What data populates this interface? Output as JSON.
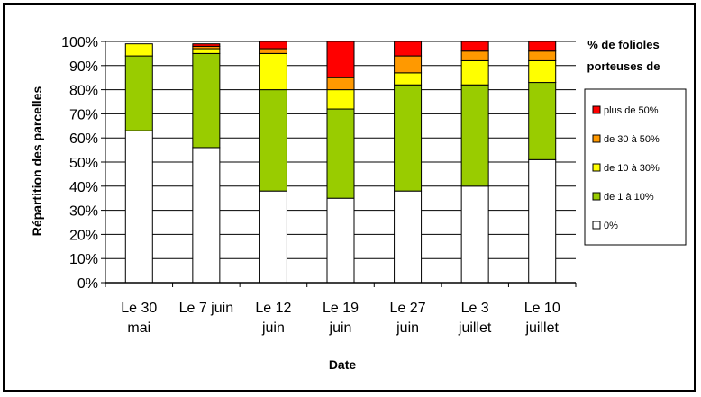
{
  "chart_data": {
    "type": "bar",
    "stacked": true,
    "categories": [
      [
        "Le 30",
        "mai"
      ],
      [
        "Le 7 juin"
      ],
      [
        "Le 12",
        "juin"
      ],
      [
        "Le 19",
        "juin"
      ],
      [
        "Le 27",
        "juin"
      ],
      [
        "Le 3",
        "juillet"
      ],
      [
        "Le 10",
        "juillet"
      ]
    ],
    "series": [
      {
        "name": "0%",
        "color": "#ffffff",
        "values": [
          63,
          56,
          38,
          35,
          38,
          40,
          51
        ]
      },
      {
        "name": "de 1 à 10%",
        "color": "#99cc00",
        "values": [
          31,
          39,
          42,
          37,
          44,
          42,
          32
        ]
      },
      {
        "name": "de 10 à 30%",
        "color": "#ffff00",
        "values": [
          5,
          2,
          15,
          8,
          5,
          10,
          9
        ]
      },
      {
        "name": "de 30 à 50%",
        "color": "#ff9900",
        "values": [
          0,
          1,
          2,
          5,
          7,
          4,
          4
        ]
      },
      {
        "name": "plus de 50%",
        "color": "#ff0000",
        "values": [
          0,
          1,
          3,
          15,
          6,
          4,
          4
        ]
      }
    ],
    "xlabel": "Date",
    "ylabel": "Répartition des parcelles",
    "ylim": [
      0,
      100
    ],
    "yticks": [
      "0%",
      "10%",
      "20%",
      "30%",
      "40%",
      "50%",
      "60%",
      "70%",
      "80%",
      "90%",
      "100%"
    ],
    "legend_title": [
      "% de folioles",
      "porteuses de"
    ],
    "legend_position": "right",
    "grid": true
  }
}
